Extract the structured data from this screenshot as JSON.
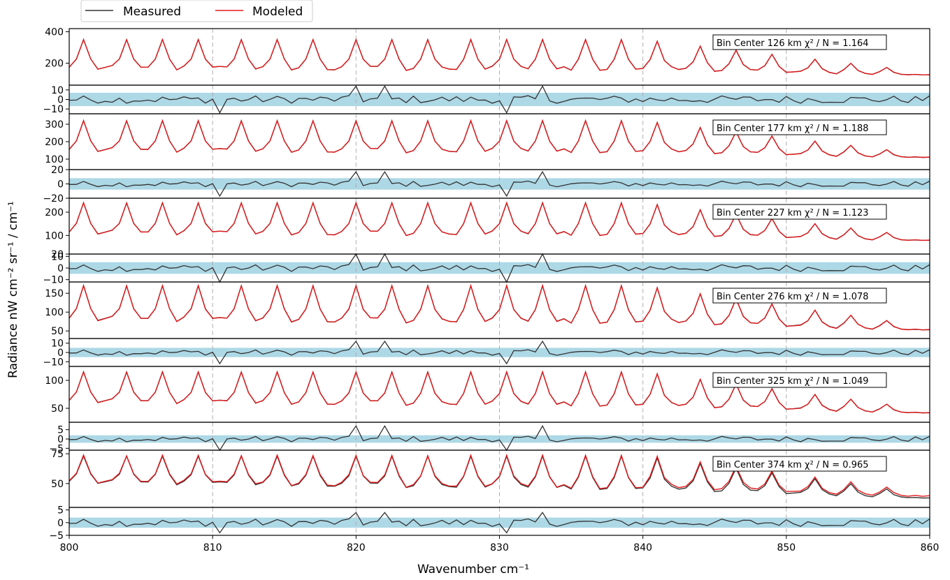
{
  "chart_data": {
    "type": "line",
    "xlabel": "Wavenumber cm⁻¹",
    "ylabel": "Radiance nW cm⁻² sr⁻¹ / cm⁻¹",
    "xlim": [
      800,
      860
    ],
    "xticks": [
      800,
      810,
      820,
      830,
      840,
      850,
      860
    ],
    "xtick_labels": [
      "800",
      "810",
      "820",
      "830",
      "840",
      "850",
      "860"
    ],
    "grid": "vertical dashed at x ticks",
    "legend": {
      "placement": "top-left outside",
      "entries": [
        {
          "label": "Measured",
          "color": "#333333"
        },
        {
          "label": "Modeled",
          "color": "#e31a1c"
        }
      ]
    },
    "colors": {
      "measured": "#333333",
      "modeled": "#e31a1c",
      "uncertainty_band": "#add8e6",
      "grid": "#b0b0b0"
    },
    "x": [
      800.0,
      800.5,
      801.0,
      801.5,
      802.0,
      802.5,
      803.0,
      803.5,
      804.0,
      804.5,
      805.0,
      805.5,
      806.0,
      806.5,
      807.0,
      807.5,
      808.0,
      808.5,
      809.0,
      809.5,
      810.0,
      810.5,
      811.0,
      811.5,
      812.0,
      812.5,
      813.0,
      813.5,
      814.0,
      814.5,
      815.0,
      815.5,
      816.0,
      816.5,
      817.0,
      817.5,
      818.0,
      818.5,
      819.0,
      819.5,
      820.0,
      820.5,
      821.0,
      821.5,
      822.0,
      822.5,
      823.0,
      823.5,
      824.0,
      824.5,
      825.0,
      825.5,
      826.0,
      826.5,
      827.0,
      827.5,
      828.0,
      828.5,
      829.0,
      829.5,
      830.0,
      830.5,
      831.0,
      831.5,
      832.0,
      832.5,
      833.0,
      833.5,
      834.0,
      834.5,
      835.0,
      835.5,
      836.0,
      836.5,
      837.0,
      837.5,
      838.0,
      838.5,
      839.0,
      839.5,
      840.0,
      840.5,
      841.0,
      841.5,
      842.0,
      842.5,
      843.0,
      843.5,
      844.0,
      844.5,
      845.0,
      845.5,
      846.0,
      846.5,
      847.0,
      847.5,
      848.0,
      848.5,
      849.0,
      849.5,
      850.0,
      850.5,
      851.0,
      851.5,
      852.0,
      852.5,
      853.0,
      853.5,
      854.0,
      854.5,
      855.0,
      855.5,
      856.0,
      856.5,
      857.0,
      857.5,
      858.0,
      858.5,
      859.0,
      859.5,
      860.0
    ],
    "panels": [
      {
        "label_prefix": "Bin Center ",
        "label_value": "126 km",
        "label_chi": " χ² / N = 1.164",
        "ylim": [
          60,
          420
        ],
        "yticks": [
          200,
          400
        ],
        "residual_ylim": [
          -15,
          15
        ],
        "residual_yticks": [
          -10,
          0,
          10
        ],
        "band_halfwidth": 7,
        "peak": 350,
        "floor": 125,
        "tail": 120,
        "mod_bias": 0,
        "res_amp": 4,
        "res_spike": 14
      },
      {
        "label_prefix": "Bin Center ",
        "label_value": "177 km",
        "label_chi": " χ² / N = 1.188",
        "ylim": [
          40,
          360
        ],
        "yticks": [
          100,
          200,
          300
        ],
        "residual_ylim": [
          -20,
          20
        ],
        "residual_yticks": [
          -20,
          0,
          20
        ],
        "band_halfwidth": 8,
        "peak": 320,
        "floor": 110,
        "tail": 105,
        "mod_bias": 0,
        "res_amp": 4,
        "res_spike": 17
      },
      {
        "label_prefix": "Bin Center ",
        "label_value": "227 km",
        "label_chi": " χ² / N = 1.123",
        "ylim": [
          20,
          260
        ],
        "yticks": [
          20,
          100,
          200
        ],
        "residual_ylim": [
          -12,
          12
        ],
        "residual_yticks": [
          -10,
          0,
          10
        ],
        "band_halfwidth": 5,
        "peak": 240,
        "floor": 80,
        "tail": 75,
        "mod_bias": 0,
        "res_amp": 3,
        "res_spike": 13
      },
      {
        "label_prefix": "Bin Center ",
        "label_value": "276 km",
        "label_chi": " χ² / N = 1.078",
        "ylim": [
          30,
          180
        ],
        "yticks": [
          50,
          100,
          150
        ],
        "residual_ylim": [
          -15,
          15
        ],
        "residual_yticks": [
          -10,
          0,
          10
        ],
        "band_halfwidth": 5,
        "peak": 170,
        "floor": 60,
        "tail": 50,
        "mod_bias": 0,
        "res_amp": 3,
        "res_spike": 12
      },
      {
        "label_prefix": "Bin Center ",
        "label_value": "325 km",
        "label_chi": " χ² / N = 1.049",
        "ylim": [
          25,
          125
        ],
        "yticks": [
          50,
          100
        ],
        "residual_ylim": [
          -6,
          9
        ],
        "residual_yticks": [
          -5,
          0,
          5
        ],
        "band_halfwidth": 2,
        "peak": 115,
        "floor": 50,
        "tail": 40,
        "mod_bias": 0,
        "res_amp": 1.5,
        "res_spike": 7
      },
      {
        "label_prefix": "Bin Center ",
        "label_value": "374 km",
        "label_chi": " χ² / N = 0.965",
        "ylim": [
          30,
          78
        ],
        "yticks": [
          50,
          75
        ],
        "residual_ylim": [
          -5,
          6
        ],
        "residual_yticks": [
          -5,
          0,
          5
        ],
        "band_halfwidth": 2,
        "peak": 73,
        "floor": 46,
        "tail": 37,
        "mod_bias": 1.5,
        "res_amp": 1.5,
        "res_spike": 4
      }
    ]
  }
}
